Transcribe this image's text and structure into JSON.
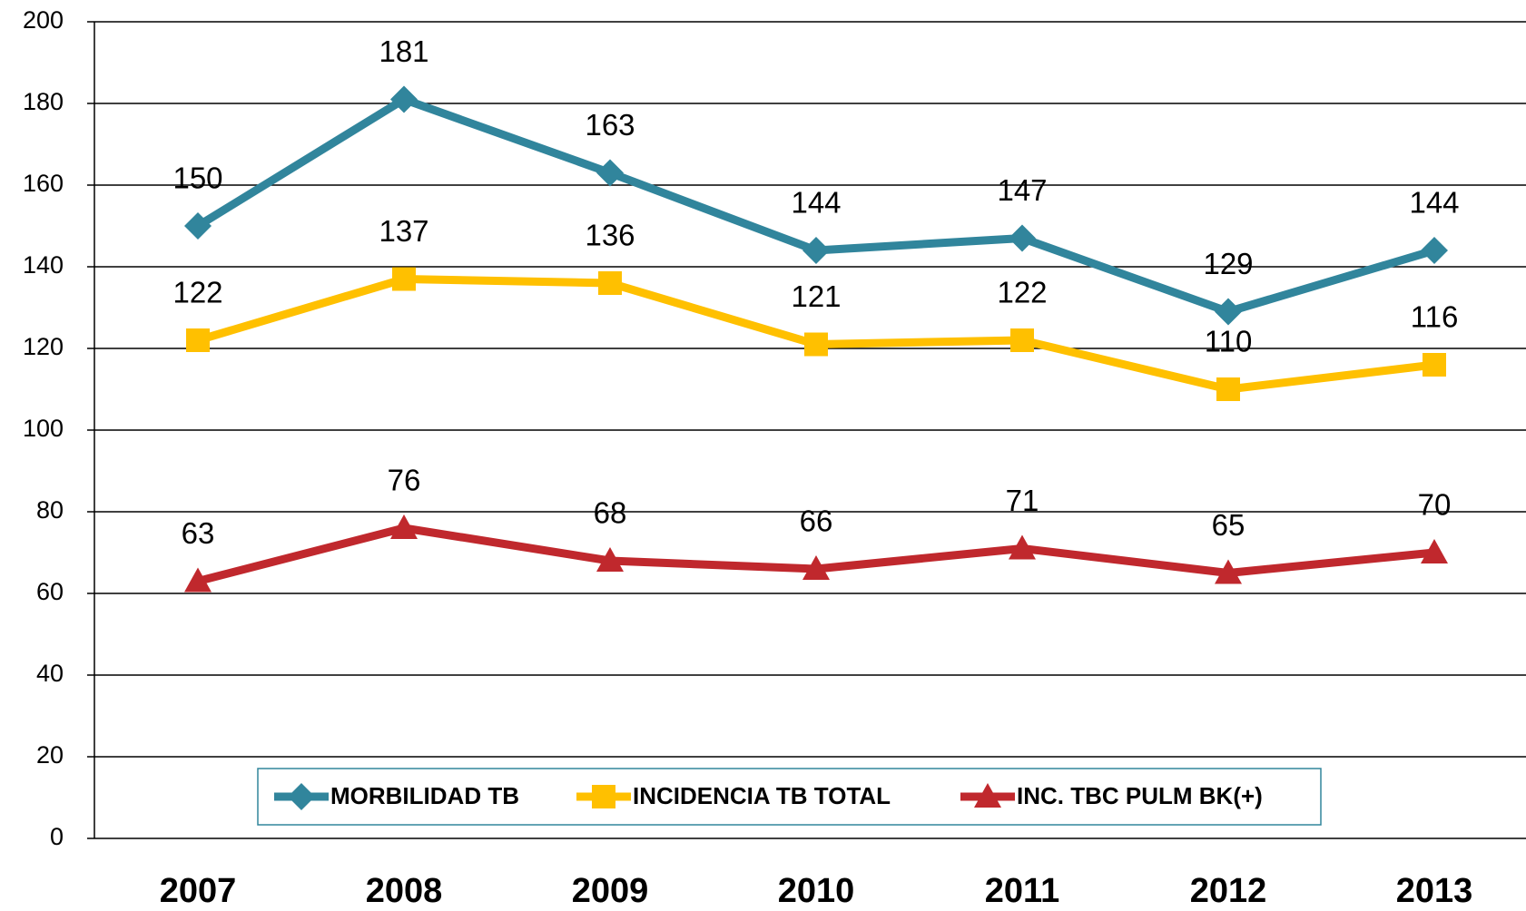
{
  "chart_data": {
    "type": "line",
    "categories": [
      "2007",
      "2008",
      "2009",
      "2010",
      "2011",
      "2012",
      "2013"
    ],
    "series": [
      {
        "name": "MORBILIDAD TB",
        "color": "#31859c",
        "marker": "diamond",
        "values": [
          150,
          181,
          163,
          144,
          147,
          129,
          144
        ]
      },
      {
        "name": "INCIDENCIA TB TOTAL",
        "color": "#ffc000",
        "marker": "square",
        "values": [
          122,
          137,
          136,
          121,
          122,
          110,
          116
        ]
      },
      {
        "name": "INC. TBC PULM BK(+)",
        "color": "#c0282d",
        "marker": "triangle",
        "values": [
          63,
          76,
          68,
          66,
          71,
          65,
          70
        ]
      }
    ],
    "ylim": [
      0,
      200
    ],
    "yticks": [
      0,
      20,
      40,
      60,
      80,
      100,
      120,
      140,
      160,
      180,
      200
    ],
    "grid": true,
    "legend": "bottom"
  }
}
